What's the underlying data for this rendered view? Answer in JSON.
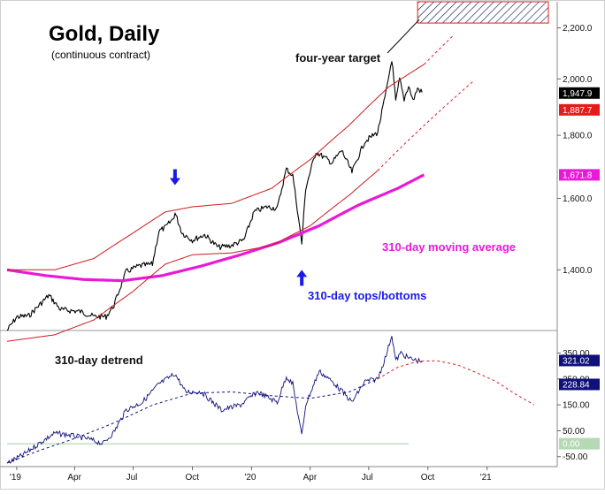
{
  "chart_data": [
    {
      "type": "line",
      "title": "Gold, Daily",
      "subtitle": "(continuous contract)",
      "x_tick_labels": [
        "'19",
        "Apr",
        "Jul",
        "Oct",
        "'20",
        "Apr",
        "Jul",
        "Oct",
        "'21"
      ],
      "y_tick_labels": [
        "2,200.0",
        "2,000.0",
        "1,800.0",
        "1,600.0",
        "1,400.0"
      ],
      "y_ticks": [
        2200,
        2000,
        1800,
        1600,
        1400
      ],
      "ylim": [
        1250,
        2310
      ],
      "log_scale": true,
      "annotations": {
        "target": "four-year target",
        "moving_average": "310-day moving average",
        "tops_bottoms": "310-day tops/bottoms"
      },
      "value_badges": [
        {
          "label": "1,947.9",
          "value": 1947.9,
          "color": "#000000"
        },
        {
          "label": "1,887.7",
          "value": 1887.7,
          "color": "#e31b1b"
        },
        {
          "label": "1,671.8",
          "value": 1671.8,
          "color": "#e81ad8"
        }
      ],
      "target_zone": {
        "low": 2220,
        "high": 2310
      },
      "series": [
        {
          "name": "price",
          "color": "#000000",
          "points": [
            [
              "2018-12-17",
              1250
            ],
            [
              "2019-01-01",
              1282
            ],
            [
              "2019-01-20",
              1285
            ],
            [
              "2019-02-20",
              1335
            ],
            [
              "2019-03-10",
              1300
            ],
            [
              "2019-04-10",
              1295
            ],
            [
              "2019-05-01",
              1283
            ],
            [
              "2019-05-20",
              1283
            ],
            [
              "2019-06-01",
              1310
            ],
            [
              "2019-06-20",
              1395
            ],
            [
              "2019-07-10",
              1410
            ],
            [
              "2019-07-31",
              1415
            ],
            [
              "2019-08-10",
              1505
            ],
            [
              "2019-08-20",
              1515
            ],
            [
              "2019-09-01",
              1540
            ],
            [
              "2019-09-04",
              1557
            ],
            [
              "2019-09-15",
              1500
            ],
            [
              "2019-10-01",
              1480
            ],
            [
              "2019-10-20",
              1495
            ],
            [
              "2019-11-10",
              1460
            ],
            [
              "2019-11-30",
              1465
            ],
            [
              "2019-12-20",
              1480
            ],
            [
              "2020-01-05",
              1560
            ],
            [
              "2020-01-25",
              1575
            ],
            [
              "2020-02-10",
              1570
            ],
            [
              "2020-02-24",
              1690
            ],
            [
              "2020-03-05",
              1670
            ],
            [
              "2020-03-19",
              1470
            ],
            [
              "2020-03-25",
              1630
            ],
            [
              "2020-04-10",
              1745
            ],
            [
              "2020-05-05",
              1710
            ],
            [
              "2020-05-20",
              1750
            ],
            [
              "2020-06-05",
              1680
            ],
            [
              "2020-06-25",
              1780
            ],
            [
              "2020-07-15",
              1810
            ],
            [
              "2020-07-28",
              1950
            ],
            [
              "2020-08-06",
              2075
            ],
            [
              "2020-08-12",
              1915
            ],
            [
              "2020-08-18",
              2000
            ],
            [
              "2020-08-25",
              1925
            ],
            [
              "2020-09-01",
              1975
            ],
            [
              "2020-09-08",
              1920
            ],
            [
              "2020-09-15",
              1965
            ],
            [
              "2020-09-22",
              1950
            ]
          ]
        },
        {
          "name": "310-day moving average",
          "color": "#e81ad8",
          "points": [
            [
              "2018-12-17",
              1400
            ],
            [
              "2019-02-15",
              1385
            ],
            [
              "2019-04-15",
              1375
            ],
            [
              "2019-06-15",
              1372
            ],
            [
              "2019-08-15",
              1385
            ],
            [
              "2019-10-15",
              1410
            ],
            [
              "2019-12-15",
              1440
            ],
            [
              "2020-02-15",
              1475
            ],
            [
              "2020-04-15",
              1520
            ],
            [
              "2020-06-15",
              1580
            ],
            [
              "2020-08-15",
              1630
            ],
            [
              "2020-09-25",
              1672
            ]
          ]
        },
        {
          "name": "upper band",
          "color": "#cc1a1a",
          "points": [
            [
              "2018-12-17",
              1400
            ],
            [
              "2019-03-01",
              1400
            ],
            [
              "2019-05-01",
              1430
            ],
            [
              "2019-07-01",
              1500
            ],
            [
              "2019-08-20",
              1560
            ],
            [
              "2019-10-01",
              1575
            ],
            [
              "2019-12-01",
              1585
            ],
            [
              "2020-02-01",
              1630
            ],
            [
              "2020-04-01",
              1720
            ],
            [
              "2020-06-01",
              1835
            ],
            [
              "2020-08-01",
              1970
            ],
            [
              "2020-09-25",
              2055
            ]
          ]
        },
        {
          "name": "lower band",
          "color": "#cc1a1a",
          "points": [
            [
              "2018-12-17",
              1225
            ],
            [
              "2019-03-01",
              1240
            ],
            [
              "2019-05-01",
              1275
            ],
            [
              "2019-07-01",
              1345
            ],
            [
              "2019-08-20",
              1415
            ],
            [
              "2019-10-01",
              1440
            ],
            [
              "2019-12-01",
              1445
            ],
            [
              "2020-02-01",
              1465
            ],
            [
              "2020-04-01",
              1520
            ],
            [
              "2020-06-01",
              1610
            ],
            [
              "2020-07-15",
              1685
            ]
          ]
        },
        {
          "name": "upper band projection",
          "color": "#e31b1b",
          "dashed": true,
          "points": [
            [
              "2020-09-25",
              2055
            ],
            [
              "2020-11-10",
              2170
            ]
          ]
        },
        {
          "name": "lower band projection",
          "color": "#e31b1b",
          "dashed": true,
          "points": [
            [
              "2020-07-15",
              1685
            ],
            [
              "2020-12-10",
              1990
            ]
          ]
        }
      ],
      "markers": [
        {
          "date": "2019-09-04",
          "value": 1640,
          "direction": "down",
          "color": "#1a1ae8"
        },
        {
          "date": "2020-03-19",
          "value": 1400,
          "direction": "up",
          "color": "#1a1ae8"
        }
      ]
    },
    {
      "type": "line",
      "title": "310-day detrend",
      "x_tick_labels": [
        "'19",
        "Apr",
        "Jul",
        "Oct",
        "'20",
        "Apr",
        "Jul",
        "Oct",
        "'21"
      ],
      "y_tick_labels": [
        "350.00",
        "250.00",
        "150.00",
        "50.00",
        "-50.00"
      ],
      "y_ticks": [
        350,
        250,
        150,
        50,
        -50
      ],
      "ylim": [
        -85,
        430
      ],
      "value_badges": [
        {
          "label": "321.02",
          "value": 321.02,
          "color": "#10107a"
        },
        {
          "label": "228.84",
          "value": 228.84,
          "color": "#10107a"
        },
        {
          "label": "0.00",
          "value": 0,
          "color": "#b5d9b5"
        }
      ],
      "zero_line": 0,
      "series": [
        {
          "name": "detrend",
          "color": "#10107a",
          "points": [
            [
              "2018-12-17",
              -75
            ],
            [
              "2019-01-10",
              -45
            ],
            [
              "2019-02-10",
              10
            ],
            [
              "2019-03-01",
              40
            ],
            [
              "2019-03-20",
              35
            ],
            [
              "2019-04-20",
              20
            ],
            [
              "2019-05-15",
              0
            ],
            [
              "2019-06-01",
              45
            ],
            [
              "2019-06-20",
              130
            ],
            [
              "2019-07-15",
              160
            ],
            [
              "2019-08-10",
              230
            ],
            [
              "2019-09-04",
              270
            ],
            [
              "2019-09-20",
              200
            ],
            [
              "2019-10-15",
              200
            ],
            [
              "2019-11-15",
              130
            ],
            [
              "2019-12-15",
              150
            ],
            [
              "2020-01-10",
              200
            ],
            [
              "2020-02-10",
              160
            ],
            [
              "2020-02-24",
              260
            ],
            [
              "2020-03-05",
              230
            ],
            [
              "2020-03-19",
              30
            ],
            [
              "2020-03-25",
              150
            ],
            [
              "2020-04-15",
              280
            ],
            [
              "2020-05-10",
              230
            ],
            [
              "2020-06-05",
              160
            ],
            [
              "2020-06-25",
              240
            ],
            [
              "2020-07-15",
              250
            ],
            [
              "2020-07-28",
              340
            ],
            [
              "2020-08-06",
              420
            ],
            [
              "2020-08-12",
              320
            ],
            [
              "2020-08-20",
              350
            ],
            [
              "2020-09-01",
              330
            ],
            [
              "2020-09-15",
              320
            ],
            [
              "2020-09-22",
              321
            ]
          ]
        },
        {
          "name": "detrend cycle",
          "color": "#10107a",
          "dashed": true,
          "points": [
            [
              "2018-12-17",
              -75
            ],
            [
              "2019-02-01",
              -30
            ],
            [
              "2019-04-01",
              20
            ],
            [
              "2019-06-01",
              80
            ],
            [
              "2019-08-01",
              150
            ],
            [
              "2019-10-01",
              195
            ],
            [
              "2019-12-01",
              200
            ],
            [
              "2020-02-01",
              185
            ],
            [
              "2020-04-01",
              175
            ],
            [
              "2020-06-01",
              200
            ],
            [
              "2020-07-15",
              250
            ]
          ]
        },
        {
          "name": "detrend projection",
          "color": "#e31b1b",
          "dashed": true,
          "points": [
            [
              "2020-07-15",
              250
            ],
            [
              "2020-08-15",
              295
            ],
            [
              "2020-09-15",
              318
            ],
            [
              "2020-10-15",
              320
            ],
            [
              "2020-11-15",
              305
            ],
            [
              "2020-12-15",
              275
            ],
            [
              "2021-01-15",
              240
            ],
            [
              "2021-02-15",
              190
            ],
            [
              "2021-03-15",
              150
            ]
          ]
        }
      ]
    }
  ]
}
